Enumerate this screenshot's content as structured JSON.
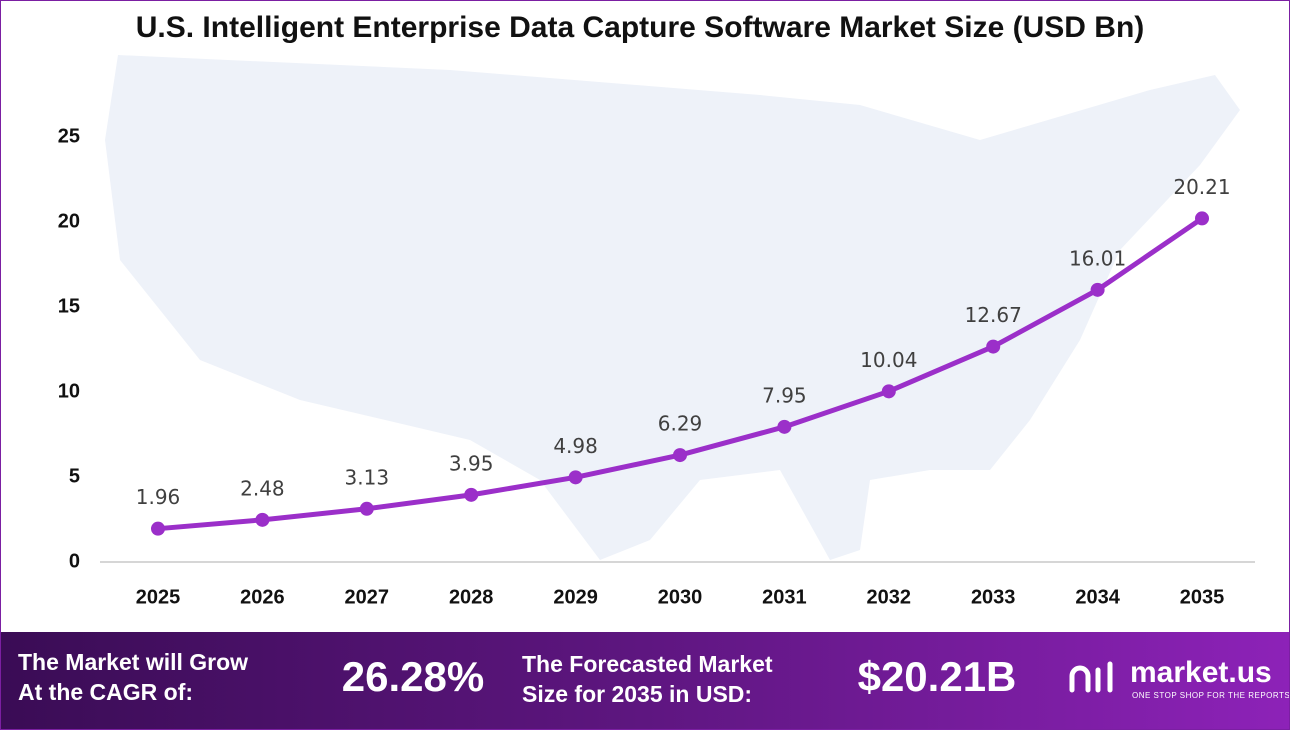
{
  "chart_data": {
    "type": "line",
    "title": "U.S. Intelligent Enterprise Data Capture Software Market Size (USD Bn)",
    "categories": [
      "2025",
      "2026",
      "2027",
      "2028",
      "2029",
      "2030",
      "2031",
      "2032",
      "2033",
      "2034",
      "2035"
    ],
    "values": [
      1.96,
      2.48,
      3.13,
      3.95,
      4.98,
      6.29,
      7.95,
      10.04,
      12.67,
      16.01,
      20.21
    ],
    "color": "#9b2fc9",
    "ylim": [
      0,
      25
    ],
    "yticks": [
      0,
      5,
      10,
      15,
      20,
      25
    ],
    "grid": false
  },
  "footer": {
    "cagr_text": [
      "The Market will Grow",
      "At the CAGR of:"
    ],
    "cagr_value": "26.28%",
    "forecast_text": [
      "The Forecasted Market",
      "Size for 2035 in USD:"
    ],
    "forecast_value": "$20.21B",
    "brand": "market.us",
    "tagline": "ONE STOP SHOP FOR THE REPORTS"
  }
}
